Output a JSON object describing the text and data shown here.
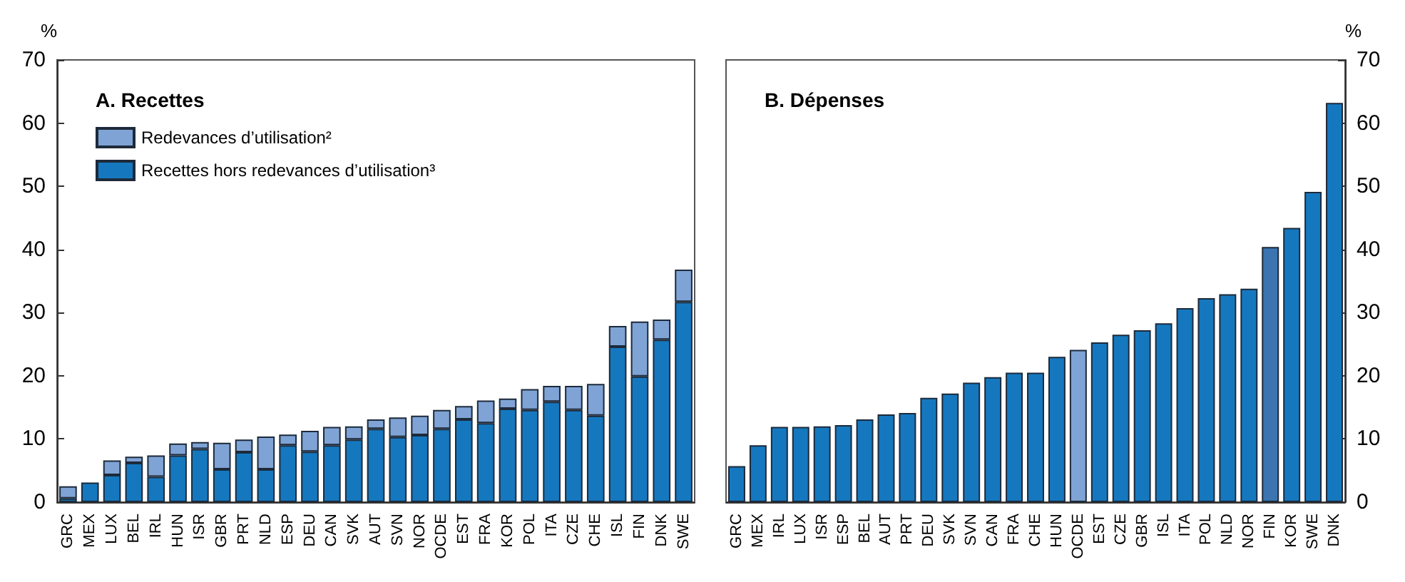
{
  "chart_data": [
    {
      "type": "bar",
      "title": "A. Recettes",
      "ylabel": "%",
      "stacked": true,
      "legend": "top left",
      "categories": [
        "GRC",
        "MEX",
        "LUX",
        "BEL",
        "IRL",
        "HUN",
        "ISR",
        "GBR",
        "PRT",
        "NLD",
        "ESP",
        "DEU",
        "CAN",
        "SVK",
        "AUT",
        "SVN",
        "NOR",
        "OCDE",
        "EST",
        "FRA",
        "KOR",
        "POL",
        "ITA",
        "CZE",
        "CHE",
        "ISL",
        "FIN",
        "DNK",
        "SWE"
      ],
      "series": [
        {
          "name": "Recettes hors redevances d’utilisation³",
          "color": "#1578bf",
          "values": [
            0.6,
            3.1,
            4.3,
            6.2,
            4.0,
            7.4,
            8.4,
            5.2,
            7.9,
            5.2,
            9.0,
            8.0,
            9.0,
            9.9,
            11.6,
            10.3,
            10.6,
            11.6,
            13.1,
            12.5,
            14.8,
            14.6,
            15.9,
            14.6,
            13.7,
            24.6,
            19.9,
            25.7,
            31.7
          ]
        },
        {
          "name": "Redevances d’utilisation²",
          "color": "#7fa3d5",
          "values": [
            1.9,
            null,
            2.3,
            1.0,
            3.4,
            1.9,
            1.1,
            4.2,
            2.0,
            5.2,
            1.7,
            3.3,
            2.9,
            2.1,
            1.5,
            3.1,
            3.1,
            3.0,
            2.1,
            3.6,
            1.6,
            3.3,
            2.5,
            3.8,
            5.0,
            3.3,
            8.7,
            3.2,
            5.1
          ]
        }
      ],
      "ylim": [
        0,
        70
      ],
      "yticks": [
        0,
        10,
        20,
        30,
        40,
        50,
        60,
        70
      ]
    },
    {
      "type": "bar",
      "title": "B. Dépenses",
      "ylabel": "%",
      "categories": [
        "GRC",
        "MEX",
        "IRL",
        "LUX",
        "ISR",
        "ESP",
        "BEL",
        "AUT",
        "PRT",
        "DEU",
        "SVK",
        "SVN",
        "CAN",
        "FRA",
        "CHE",
        "HUN",
        "OCDE",
        "EST",
        "CZE",
        "GBR",
        "ISL",
        "ITA",
        "POL",
        "NLD",
        "NOR",
        "FIN",
        "KOR",
        "SWE",
        "DNK"
      ],
      "values": [
        5.7,
        9.0,
        11.9,
        11.9,
        12.0,
        12.2,
        13.1,
        13.9,
        14.1,
        16.5,
        17.2,
        18.9,
        19.8,
        20.5,
        20.5,
        23.0,
        24.1,
        25.3,
        26.5,
        27.2,
        28.3,
        30.7,
        32.3,
        32.9,
        33.8,
        40.4,
        43.4,
        49.1,
        63.2
      ],
      "colors": [
        "#1578bf",
        "#1578bf",
        "#1578bf",
        "#1578bf",
        "#1578bf",
        "#1578bf",
        "#1578bf",
        "#1578bf",
        "#1578bf",
        "#1578bf",
        "#1578bf",
        "#1578bf",
        "#1578bf",
        "#1578bf",
        "#1578bf",
        "#1578bf",
        "#7fa3d5",
        "#1578bf",
        "#1578bf",
        "#1578bf",
        "#1578bf",
        "#1578bf",
        "#1578bf",
        "#1578bf",
        "#1578bf",
        "#3b74b0",
        "#1578bf",
        "#1578bf",
        "#1578bf"
      ],
      "ylim": [
        0,
        70
      ],
      "yticks": [
        0,
        10,
        20,
        30,
        40,
        50,
        60,
        70
      ]
    }
  ]
}
